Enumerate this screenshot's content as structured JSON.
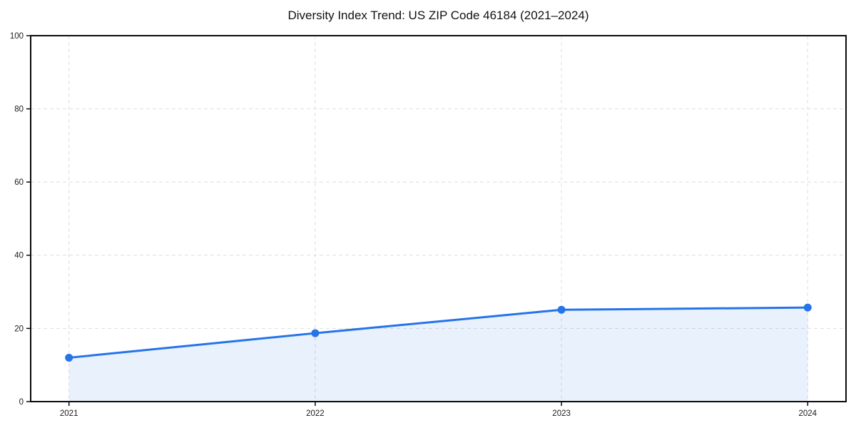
{
  "chart_data": {
    "type": "line",
    "title": "Diversity Index Trend: US ZIP Code 46184 (2021–2024)",
    "x": [
      2021,
      2022,
      2023,
      2024
    ],
    "xtick_labels": [
      "2021",
      "2022",
      "2023",
      "2024"
    ],
    "series": [
      {
        "name": "Diversity Index",
        "values": [
          12.0,
          18.7,
          25.1,
          25.7
        ]
      }
    ],
    "xlabel": "",
    "ylabel": "",
    "ylim": [
      0,
      100
    ],
    "yticks": [
      0,
      20,
      40,
      60,
      80,
      100
    ],
    "ytick_labels": [
      "0",
      "20",
      "40",
      "60",
      "80",
      "100"
    ],
    "grid": "dashed-both-axes",
    "legend": "none",
    "area_fill_under_line": true,
    "style": {
      "line_color": "#2574e8",
      "marker_color": "#2574e8",
      "fill_color": "#2574e8",
      "fill_opacity": 0.1,
      "grid_color": "#dedede",
      "axis_color": "#0a0a0a",
      "text_color": "#1a1a1a",
      "background": "#ffffff"
    }
  }
}
